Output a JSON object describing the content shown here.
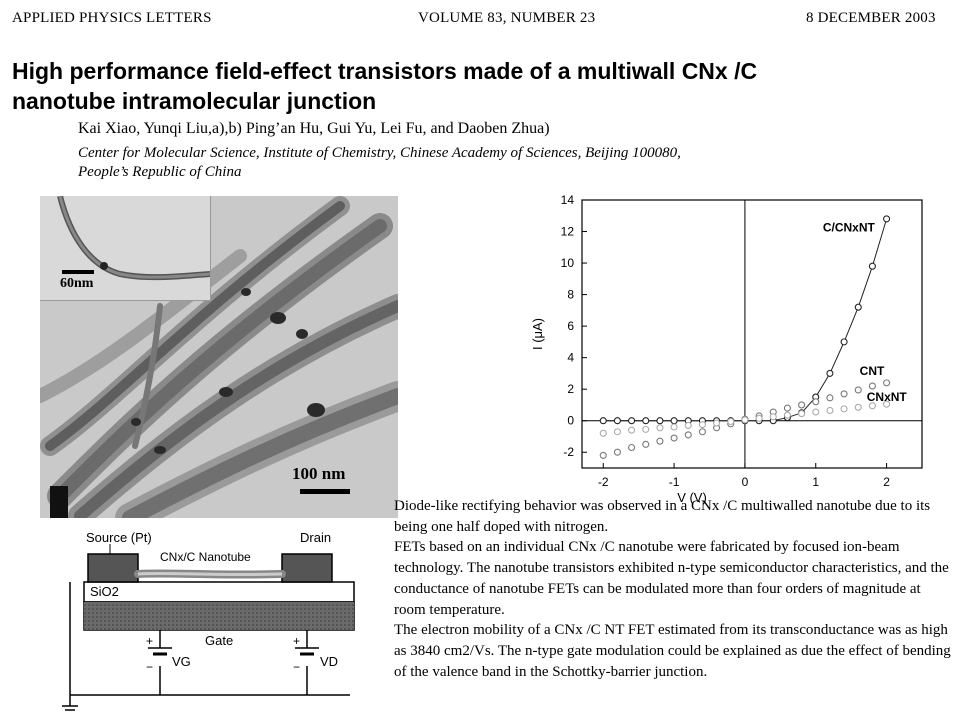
{
  "header": {
    "journal": "APPLIED PHYSICS LETTERS",
    "volume": "VOLUME 83, NUMBER 23",
    "date": "8 DECEMBER 2003"
  },
  "title": {
    "line1": "High performance field-effect transistors made of a multiwall CNx /C",
    "line2": "nanotube intramolecular junction"
  },
  "authors": "Kai Xiao, Yunqi Liu,a),b) Ping’an Hu, Gui Yu, Lei Fu, and Daoben Zhua)",
  "affiliation": {
    "line1": "Center for Molecular Science, Institute of Chemistry, Chinese Academy of Sciences, Beijing 100080,",
    "line2": "People’s Republic of China"
  },
  "tem_image": {
    "inset_scale": "60nm",
    "main_scale": "100 nm"
  },
  "schematic": {
    "source_label": "Source (Pt)",
    "drain_label": "Drain",
    "nanotube_label": "CNx/C Nanotube",
    "oxide_label": "SiO2",
    "gate_label": "Gate",
    "vg_label": "VG",
    "vd_label": "VD",
    "plus": "+",
    "minus": "−"
  },
  "chart_data": {
    "type": "scatter",
    "xlabel": "V (V)",
    "ylabel": "I (μA)",
    "xlim": [
      -2.3,
      2.5
    ],
    "ylim": [
      -3,
      14
    ],
    "xticks": [
      -2,
      -1,
      0,
      1,
      2
    ],
    "yticks": [
      -2,
      0,
      2,
      4,
      6,
      8,
      10,
      12,
      14
    ],
    "series": [
      {
        "name": "C/CNxNT",
        "color": "#222222",
        "line": true,
        "x": [
          -2.0,
          -1.8,
          -1.6,
          -1.4,
          -1.2,
          -1.0,
          -0.8,
          -0.6,
          -0.4,
          -0.2,
          0.0,
          0.2,
          0.4,
          0.6,
          0.8,
          1.0,
          1.2,
          1.4,
          1.6,
          1.8,
          2.0
        ],
        "y": [
          0,
          0,
          0,
          0,
          0,
          0,
          0,
          0,
          0,
          0,
          0,
          0,
          0,
          0.2,
          0.5,
          1.5,
          3.0,
          5.0,
          7.2,
          9.8,
          12.8
        ]
      },
      {
        "name": "CNT",
        "color": "#777777",
        "line": false,
        "x": [
          -2.0,
          -1.8,
          -1.6,
          -1.4,
          -1.2,
          -1.0,
          -0.8,
          -0.6,
          -0.4,
          -0.2,
          0.0,
          0.2,
          0.4,
          0.6,
          0.8,
          1.0,
          1.2,
          1.4,
          1.6,
          1.8,
          2.0
        ],
        "y": [
          -2.2,
          -2.0,
          -1.7,
          -1.5,
          -1.3,
          -1.1,
          -0.9,
          -0.7,
          -0.45,
          -0.2,
          0.1,
          0.3,
          0.55,
          0.8,
          1.0,
          1.2,
          1.45,
          1.7,
          1.95,
          2.2,
          2.4
        ]
      },
      {
        "name": "CNxNT",
        "color": "#aaaaaa",
        "line": false,
        "x": [
          -2.0,
          -1.8,
          -1.6,
          -1.4,
          -1.2,
          -1.0,
          -0.8,
          -0.6,
          -0.4,
          -0.2,
          0.0,
          0.2,
          0.4,
          0.6,
          0.8,
          1.0,
          1.2,
          1.4,
          1.6,
          1.8,
          2.0
        ],
        "y": [
          -0.8,
          -0.7,
          -0.6,
          -0.55,
          -0.45,
          -0.4,
          -0.3,
          -0.25,
          -0.15,
          -0.05,
          0.05,
          0.15,
          0.25,
          0.35,
          0.45,
          0.55,
          0.65,
          0.75,
          0.85,
          0.95,
          1.05
        ]
      }
    ],
    "annotations": [
      {
        "text": "C/CNxNT",
        "x": 1.1,
        "y": 12.0
      },
      {
        "text": "CNT",
        "x": 1.62,
        "y": 2.9
      },
      {
        "text": "CNxNT",
        "x": 1.72,
        "y": 1.25
      }
    ]
  },
  "abstract": {
    "p1": "Diode-like rectifying behavior was observed in a CNx /C multiwalled nanotube due to its being one half doped with nitrogen.",
    "p2": "FETs based on an individual CNx /C nanotube were fabricated by focused ion-beam technology. The nanotube transistors exhibited n-type semiconductor characteristics, and the conductance of nanotube FETs can be modulated more than four orders of magnitude at room temperature.",
    "p3": "The electron mobility of a CNx /C NT FET estimated from its transconductance was as high as 3840 cm2/Vs. The n-type gate modulation could be explained as due the effect of bending of the valence band in the Schottky-barrier junction."
  }
}
